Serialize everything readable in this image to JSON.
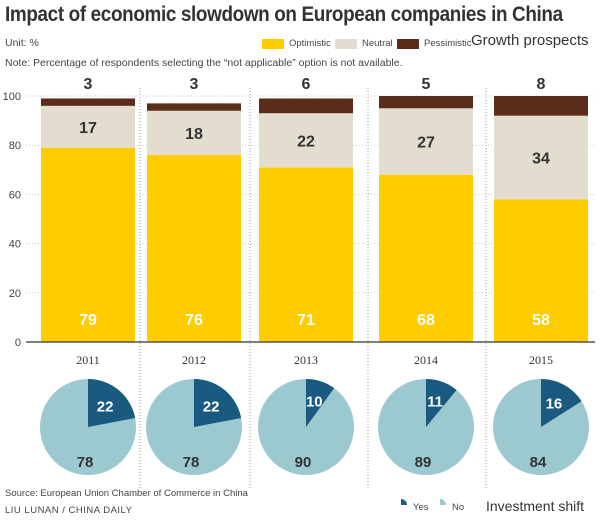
{
  "title": "Impact of economic slowdown on European companies in China",
  "unit": "Unit: %",
  "note": "Note: Percentage of respondents selecting the “not applicable” option is not available.",
  "growth_prospects_label": "Growth prospects",
  "investment_shift_label": "Investment shift",
  "source": "Source: European Union Chamber of Commerce in China",
  "credit": "LIU LUNAN / CHINA DAILY",
  "colors": {
    "optimistic": "#FFCC00",
    "neutral": "#E3DDD0",
    "pessimistic": "#5A2D1A",
    "yes": "#1A5A80",
    "no": "#9CC8D0",
    "axis": "#555555"
  },
  "chart_data": [
    {
      "type": "bar",
      "stacked": true,
      "categories": [
        "2011",
        "2012",
        "2013",
        "2014",
        "2015"
      ],
      "series": [
        {
          "name": "Optimistic",
          "values": [
            79,
            76,
            71,
            68,
            58
          ]
        },
        {
          "name": "Neutral",
          "values": [
            17,
            18,
            22,
            27,
            34
          ]
        },
        {
          "name": "Pessimistic",
          "values": [
            3,
            3,
            6,
            5,
            8
          ]
        }
      ],
      "y_ticks": [
        0,
        20,
        40,
        60,
        80,
        100
      ],
      "ylim": [
        0,
        100
      ],
      "legend": "top-right"
    },
    {
      "type": "pie",
      "categories": [
        "2011",
        "2012",
        "2013",
        "2014",
        "2015"
      ],
      "series": [
        {
          "name": "Yes",
          "values": [
            22,
            22,
            10,
            11,
            16
          ]
        },
        {
          "name": "No",
          "values": [
            78,
            78,
            90,
            89,
            84
          ]
        }
      ],
      "legend": "bottom-right"
    }
  ]
}
